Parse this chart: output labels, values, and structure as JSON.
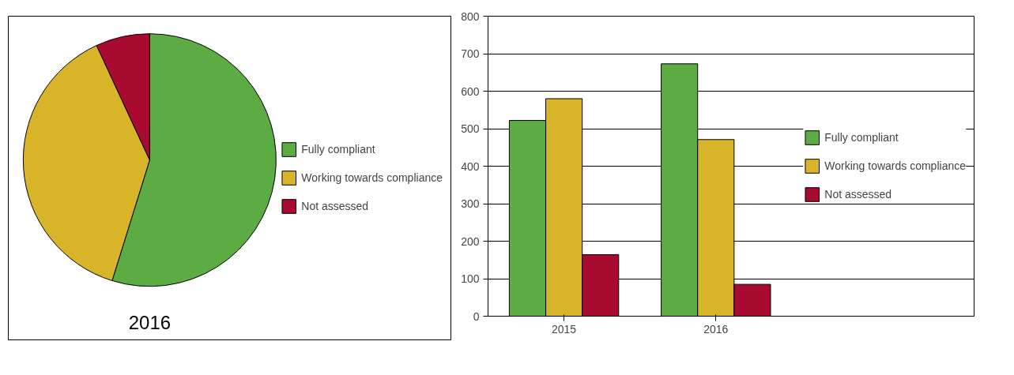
{
  "chart_data": [
    {
      "type": "pie",
      "title": "2016",
      "categories": [
        "Fully compliant",
        "Working towards compliance",
        "Not assessed"
      ],
      "values": [
        54.8,
        38.3,
        6.9
      ],
      "colors": [
        "#5cab43",
        "#d7b428",
        "#a80a30"
      ],
      "legend": "right"
    },
    {
      "type": "bar",
      "categories": [
        "2015",
        "2016"
      ],
      "series": [
        {
          "name": "Fully compliant",
          "color": "#5cab43",
          "values": [
            522,
            673
          ]
        },
        {
          "name": "Working towards compliance",
          "color": "#d7b428",
          "values": [
            580,
            471
          ]
        },
        {
          "name": "Not assessed",
          "color": "#a80a30",
          "values": [
            164,
            85
          ]
        }
      ],
      "ylim": [
        0,
        800
      ],
      "yticks": [
        0,
        100,
        200,
        300,
        400,
        500,
        600,
        700,
        800
      ],
      "grid": "y",
      "legend": "right"
    }
  ]
}
